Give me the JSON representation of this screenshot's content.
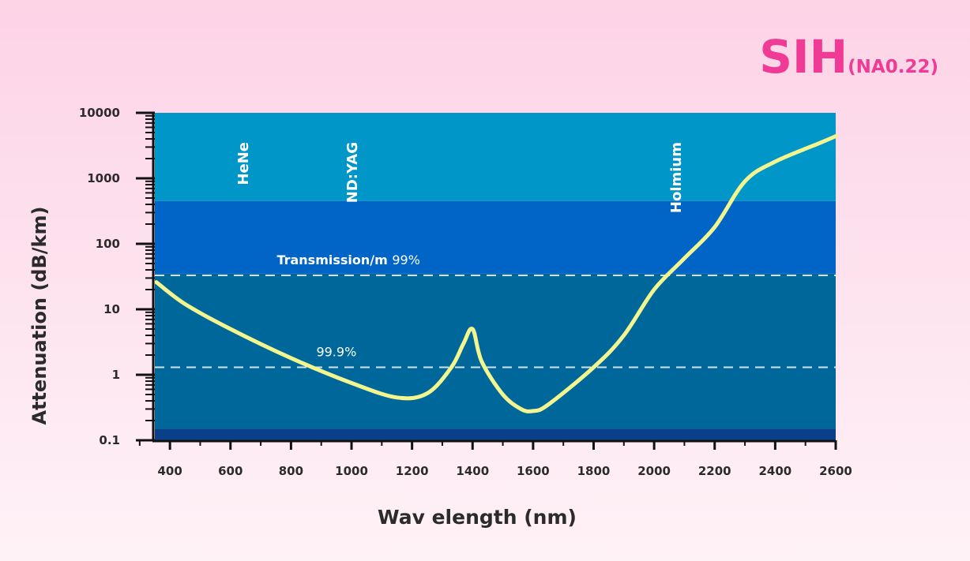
{
  "title": {
    "main": "SIH",
    "sub": "(NA0.22)"
  },
  "chart_data": {
    "type": "line",
    "xlabel": "Wav elength (nm)",
    "ylabel": "Attenuation (dB/km)",
    "xlim": [
      350,
      2600
    ],
    "ylim": [
      0.1,
      10000
    ],
    "yscale": "log",
    "x_ticks": [
      400,
      600,
      800,
      1000,
      1200,
      1400,
      1600,
      1800,
      2000,
      2200,
      2400,
      2600
    ],
    "y_ticks": [
      {
        "value": 10000,
        "label": "10000"
      },
      {
        "value": 1000,
        "label": "1000"
      },
      {
        "value": 100,
        "label": "100"
      },
      {
        "value": 10,
        "label": "10"
      },
      {
        "value": 1,
        "label": "1"
      },
      {
        "value": 0.1,
        "label": "0.1"
      }
    ],
    "bands": [
      {
        "from": 450,
        "to": 10000,
        "color": "#0096c8"
      },
      {
        "from": 35,
        "to": 450,
        "color": "#0065c6"
      },
      {
        "from": 0.15,
        "to": 35,
        "color": "#00679b"
      },
      {
        "from": 0.1,
        "to": 0.15,
        "color": "#0a3f8a"
      }
    ],
    "transmission_lines": [
      {
        "value": 33,
        "label": "Transmission/m",
        "pct": "99%",
        "label_x": 990
      },
      {
        "value": 1.3,
        "label": "",
        "pct": "99.9%",
        "label_x": 950
      }
    ],
    "laser_labels": [
      {
        "text": "HeNe",
        "x": 640
      },
      {
        "text": "ND:YAG",
        "x": 1000
      },
      {
        "text": "Holmium",
        "x": 2070
      }
    ],
    "series": [
      {
        "color": "#f3f58f",
        "x": [
          355,
          450,
          600,
          800,
          1000,
          1150,
          1250,
          1330,
          1370,
          1400,
          1430,
          1500,
          1560,
          1600,
          1650,
          1800,
          1900,
          2000,
          2100,
          2200,
          2300,
          2400,
          2550,
          2600
        ],
        "y": [
          26,
          12,
          5,
          1.8,
          0.75,
          0.45,
          0.52,
          1.3,
          3,
          5,
          1.6,
          0.5,
          0.3,
          0.28,
          0.35,
          1.3,
          4,
          20,
          60,
          180,
          900,
          1800,
          3500,
          4400
        ]
      }
    ]
  }
}
